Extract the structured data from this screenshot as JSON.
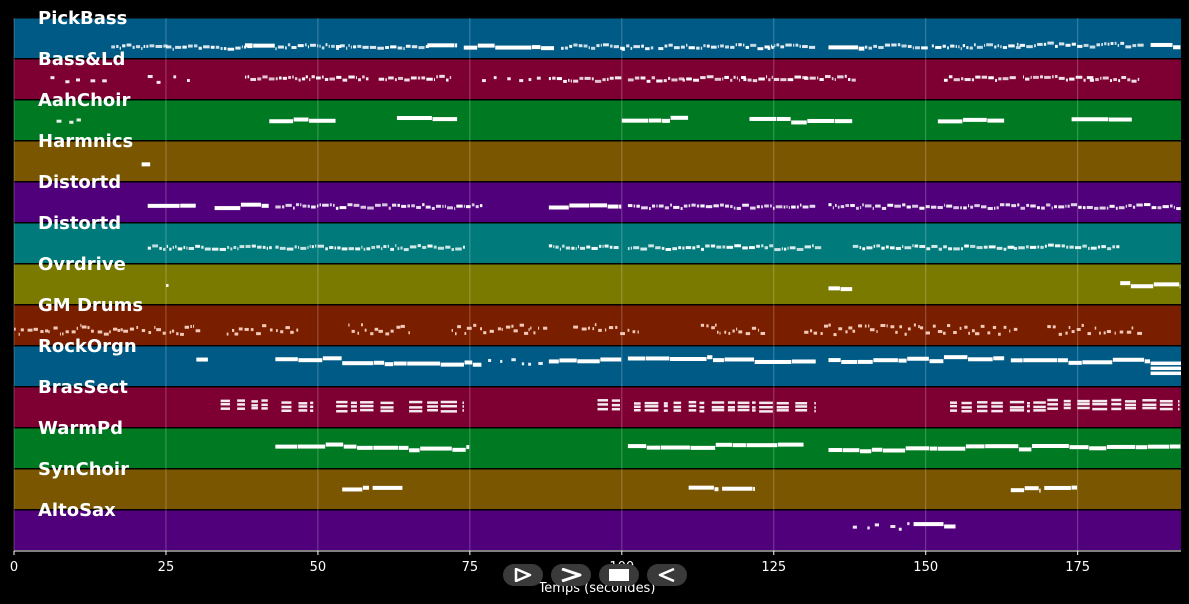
{
  "chart_data": {
    "type": "piano-roll",
    "title": "",
    "xlabel": "Temps (secondes)",
    "ylabel": "",
    "xlim": [
      0,
      192
    ],
    "xticks": [
      0,
      25,
      50,
      75,
      100,
      125,
      150,
      175
    ],
    "grid": true,
    "tracks": [
      {
        "name": "PickBass",
        "color": "#005a86",
        "segments": [
          [
            16,
            25,
            0.7,
            "dense"
          ],
          [
            25,
            39,
            0.72,
            "dense"
          ],
          [
            38,
            43,
            0.68,
            "solid"
          ],
          [
            43,
            53,
            0.7,
            "dense"
          ],
          [
            53,
            68,
            0.7,
            "dense"
          ],
          [
            68,
            73,
            0.7,
            "solid"
          ],
          [
            74,
            89,
            0.72,
            "solid"
          ],
          [
            90,
            100,
            0.7,
            "dense"
          ],
          [
            100,
            105,
            0.72,
            "dense"
          ],
          [
            106,
            125,
            0.7,
            "dense"
          ],
          [
            124,
            132,
            0.7,
            "dense"
          ],
          [
            134,
            140,
            0.72,
            "solid"
          ],
          [
            140,
            150,
            0.7,
            "dense"
          ],
          [
            151,
            165,
            0.7,
            "dense"
          ],
          [
            165,
            185,
            0.66,
            "dense"
          ],
          [
            187,
            192,
            0.7,
            "solid"
          ]
        ]
      },
      {
        "name": "Bass&Ld",
        "color": "#7e0032",
        "segments": [
          [
            6,
            15,
            0.5,
            "sparse"
          ],
          [
            22,
            30,
            0.5,
            "sparse"
          ],
          [
            38,
            48,
            0.47,
            "dense"
          ],
          [
            48,
            58,
            0.47,
            "dense"
          ],
          [
            60,
            72,
            0.47,
            "dense"
          ],
          [
            77,
            87,
            0.52,
            "sparse"
          ],
          [
            88,
            100,
            0.5,
            "dense"
          ],
          [
            101,
            110,
            0.5,
            "dense"
          ],
          [
            110,
            120,
            0.48,
            "dense"
          ],
          [
            120,
            130,
            0.48,
            "dense"
          ],
          [
            130,
            138,
            0.47,
            "dense"
          ],
          [
            153,
            165,
            0.48,
            "dense"
          ],
          [
            166,
            177,
            0.47,
            "dense"
          ],
          [
            177,
            185,
            0.5,
            "dense"
          ]
        ]
      },
      {
        "name": "AahChoir",
        "color": "#007a22",
        "segments": [
          [
            7,
            11,
            0.5,
            "sparse"
          ],
          [
            42,
            53,
            0.48,
            "solid"
          ],
          [
            63,
            73,
            0.48,
            "solid"
          ],
          [
            100,
            111,
            0.48,
            "solid"
          ],
          [
            121,
            138,
            0.5,
            "solid"
          ],
          [
            152,
            163,
            0.48,
            "solid"
          ],
          [
            174,
            184,
            0.5,
            "solid"
          ]
        ]
      },
      {
        "name": "Harmnics",
        "color": "#7a5600",
        "segments": [
          [
            21,
            22.5,
            0.55,
            "solid"
          ]
        ]
      },
      {
        "name": "Distortd",
        "color": "#4f007a",
        "segments": [
          [
            22,
            30,
            0.62,
            "solid"
          ],
          [
            33,
            42,
            0.6,
            "solid"
          ],
          [
            43,
            77,
            0.6,
            "dense"
          ],
          [
            88,
            100,
            0.6,
            "solid"
          ],
          [
            101,
            131,
            0.6,
            "dense"
          ],
          [
            134,
            192,
            0.6,
            "dense"
          ]
        ]
      },
      {
        "name": "Distortd",
        "color": "#007a7a",
        "segments": [
          [
            22,
            42,
            0.6,
            "dense"
          ],
          [
            43,
            74,
            0.6,
            "dense"
          ],
          [
            88,
            99,
            0.6,
            "dense"
          ],
          [
            101,
            132,
            0.6,
            "dense"
          ],
          [
            138,
            164,
            0.6,
            "dense"
          ],
          [
            164,
            182,
            0.58,
            "dense"
          ]
        ]
      },
      {
        "name": "Ovrdrive",
        "color": "#7a7a00",
        "segments": [
          [
            25,
            27,
            0.55,
            "sparse"
          ],
          [
            134,
            138,
            0.6,
            "solid"
          ],
          [
            182,
            192,
            0.5,
            "solid"
          ]
        ]
      },
      {
        "name": "GM Drums",
        "color": "#7a1e00",
        "segments": [
          [
            0,
            30,
            0.6,
            "drums"
          ],
          [
            35,
            47,
            0.6,
            "drums"
          ],
          [
            55,
            65,
            0.6,
            "drums"
          ],
          [
            72,
            88,
            0.6,
            "drums"
          ],
          [
            92,
            103,
            0.6,
            "drums"
          ],
          [
            113,
            123,
            0.6,
            "drums"
          ],
          [
            130,
            152,
            0.6,
            "drums"
          ],
          [
            152,
            165,
            0.6,
            "drums"
          ],
          [
            170,
            186,
            0.6,
            "drums"
          ]
        ]
      },
      {
        "name": "RockOrgn",
        "color": "#005a86",
        "segments": [
          [
            30,
            32,
            0.3,
            "solid"
          ],
          [
            43,
            54,
            0.3,
            "solid"
          ],
          [
            54,
            77,
            0.42,
            "solid"
          ],
          [
            78,
            88,
            0.4,
            "sparse"
          ],
          [
            88,
            100,
            0.35,
            "solid"
          ],
          [
            101,
            115,
            0.3,
            "solid"
          ],
          [
            115,
            132,
            0.35,
            "solid"
          ],
          [
            134,
            153,
            0.35,
            "solid"
          ],
          [
            153,
            163,
            0.3,
            "solid"
          ],
          [
            164,
            187,
            0.38,
            "solid"
          ],
          [
            187,
            192,
            0.55,
            "stack"
          ]
        ]
      },
      {
        "name": "BrasSect",
        "color": "#7e0032",
        "segments": [
          [
            34,
            42,
            0.45,
            "chords"
          ],
          [
            44,
            50,
            0.5,
            "chords"
          ],
          [
            53,
            63,
            0.5,
            "chords"
          ],
          [
            65,
            74,
            0.5,
            "chords"
          ],
          [
            96,
            100,
            0.45,
            "chords"
          ],
          [
            102,
            110,
            0.5,
            "chords"
          ],
          [
            111,
            132,
            0.5,
            "chords"
          ],
          [
            154,
            170,
            0.5,
            "chords"
          ],
          [
            170,
            192,
            0.45,
            "chords"
          ]
        ]
      },
      {
        "name": "WarmPd",
        "color": "#007a22",
        "segments": [
          [
            43,
            65,
            0.45,
            "solid"
          ],
          [
            65,
            75,
            0.5,
            "solid"
          ],
          [
            101,
            130,
            0.45,
            "solid"
          ],
          [
            134,
            152,
            0.52,
            "solid"
          ],
          [
            152,
            192,
            0.48,
            "solid"
          ]
        ]
      },
      {
        "name": "SynChoir",
        "color": "#7a5600",
        "segments": [
          [
            54,
            58.5,
            0.5,
            "solid"
          ],
          [
            59,
            64,
            0.5,
            "solid"
          ],
          [
            111,
            116,
            0.5,
            "solid"
          ],
          [
            116.5,
            122,
            0.5,
            "solid"
          ],
          [
            164,
            169,
            0.5,
            "solid"
          ],
          [
            169.5,
            175,
            0.5,
            "solid"
          ]
        ]
      },
      {
        "name": "AltoSax",
        "color": "#4f007a",
        "segments": [
          [
            138,
            148,
            0.4,
            "sparse"
          ],
          [
            148,
            155,
            0.38,
            "solid"
          ]
        ]
      }
    ]
  },
  "player": {
    "controls": [
      {
        "name": "play-button",
        "icon": "play-icon"
      },
      {
        "name": "forward-button",
        "icon": "forward-icon"
      },
      {
        "name": "stop-button",
        "icon": "stop-icon"
      },
      {
        "name": "rewind-button",
        "icon": "rewind-icon"
      }
    ]
  }
}
